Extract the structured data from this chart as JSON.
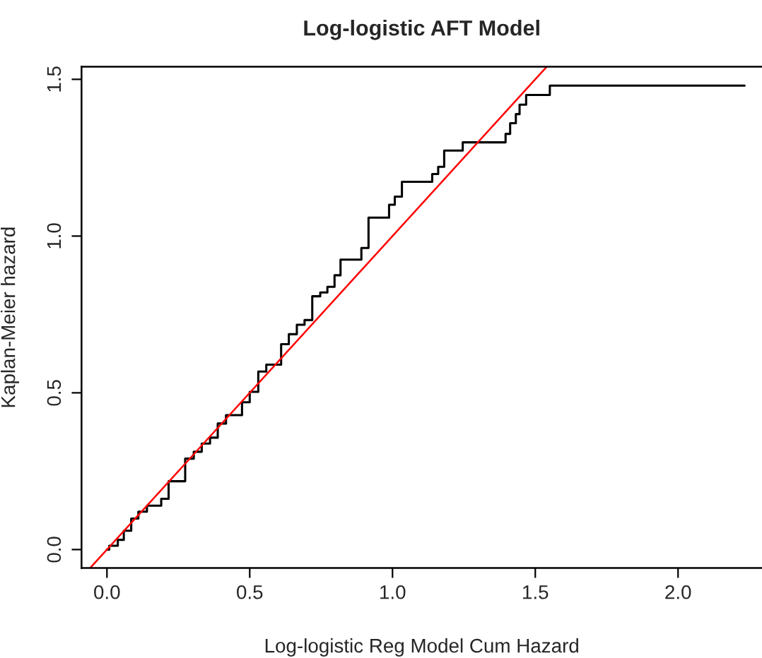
{
  "chart_data": {
    "type": "step",
    "title": "Log-logistic AFT Model",
    "xlabel": "Log-logistic Reg Model Cum Hazard",
    "ylabel": "Kaplan-Meier hazard",
    "series": [
      {
        "color": "#000000",
        "x": [
          0,
          0.008,
          0.038,
          0.059,
          0.085,
          0.11,
          0.14,
          0.19,
          0.216,
          0.274,
          0.304,
          0.332,
          0.361,
          0.388,
          0.417,
          0.473,
          0.5,
          0.53,
          0.558,
          0.61,
          0.637,
          0.665,
          0.692,
          0.719,
          0.747,
          0.772,
          0.797,
          0.818,
          0.891,
          0.916,
          0.988,
          1.008,
          1.033,
          1.139,
          1.16,
          1.181,
          1.246,
          1.396,
          1.412,
          1.432,
          1.445,
          1.468,
          1.551,
          2.233
        ],
        "values": [
          0,
          0.012,
          0.031,
          0.06,
          0.099,
          0.121,
          0.14,
          0.162,
          0.218,
          0.29,
          0.312,
          0.338,
          0.357,
          0.402,
          0.429,
          0.47,
          0.503,
          0.568,
          0.59,
          0.655,
          0.687,
          0.717,
          0.732,
          0.808,
          0.82,
          0.838,
          0.875,
          0.925,
          0.962,
          1.059,
          1.1,
          1.126,
          1.173,
          1.198,
          1.221,
          1.273,
          1.299,
          1.326,
          1.36,
          1.389,
          1.419,
          1.45,
          1.48,
          1.48
        ]
      },
      {
        "type": "line",
        "color": "#ff0000",
        "x": [
          -0.058,
          1.54
        ],
        "values": [
          -0.058,
          1.54
        ]
      }
    ],
    "xlim": [
      -0.089,
      2.294
    ],
    "ylim": [
      -0.059,
      1.54
    ],
    "xticks": [
      {
        "value": 0,
        "label": "0.0"
      },
      0.5,
      {
        "value": 1,
        "label": "1.0"
      },
      1.5,
      {
        "value": 2,
        "label": "2.0"
      }
    ],
    "yticks": [
      {
        "value": 0,
        "label": "0.0"
      },
      0.5,
      {
        "value": 1,
        "label": "1.0"
      },
      1.5
    ],
    "grid": false,
    "legend": false
  }
}
